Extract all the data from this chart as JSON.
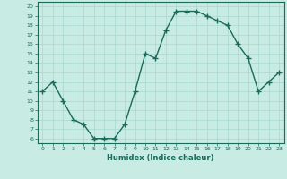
{
  "x": [
    0,
    1,
    2,
    3,
    4,
    5,
    6,
    7,
    8,
    9,
    10,
    11,
    12,
    13,
    14,
    15,
    16,
    17,
    18,
    19,
    20,
    21,
    22,
    23
  ],
  "y": [
    11,
    12,
    10,
    8,
    7.5,
    6,
    6,
    6,
    7.5,
    11,
    15,
    14.5,
    17.5,
    19.5,
    19.5,
    19.5,
    19,
    18.5,
    18,
    16,
    14.5,
    11,
    12,
    13
  ],
  "line_color": "#1a6b5a",
  "marker_color": "#1a6b5a",
  "bg_color": "#c8ebe4",
  "grid_color": "#a8d8d0",
  "xlabel": "Humidex (Indice chaleur)",
  "xlim": [
    -0.5,
    23.5
  ],
  "ylim": [
    5.5,
    20.5
  ],
  "yticks": [
    6,
    7,
    8,
    9,
    10,
    11,
    12,
    13,
    14,
    15,
    16,
    17,
    18,
    19,
    20
  ],
  "xticks": [
    0,
    1,
    2,
    3,
    4,
    5,
    6,
    7,
    8,
    9,
    10,
    11,
    12,
    13,
    14,
    15,
    16,
    17,
    18,
    19,
    20,
    21,
    22,
    23
  ],
  "tick_color": "#1a6b5a",
  "label_color": "#1a6b5a",
  "marker_size": 4,
  "line_width": 1.0
}
